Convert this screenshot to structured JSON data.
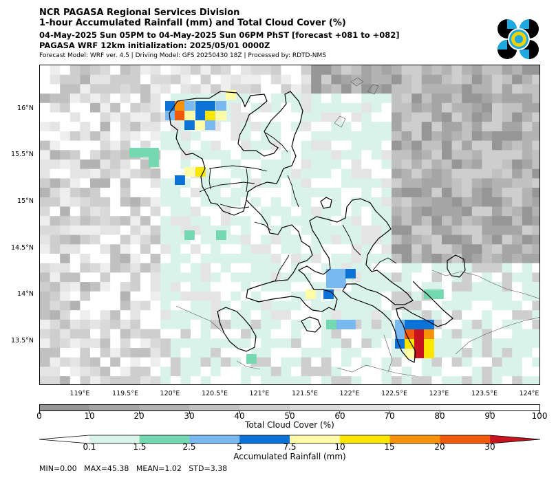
{
  "header": {
    "line1": "NCR PAGASA Regional Services Division",
    "line2": "1-hour Accumulated Rainfall (mm) and Total Cloud Cover (%)",
    "line3": "04-May-2025 Sun 05PM to 04-May-2025 Sun 06PM PhST [forecast +081 to +082]",
    "line4": "PAGASA WRF 12km initialization: 2025/05/01 0000Z",
    "line5": "Forecast Model: WRF ver. 4.5 | Driving Model: GFS 20250430 18Z | Processed by: RDTD-NMS"
  },
  "logo": {
    "name": "pagasa-seal",
    "colors": [
      "#000000",
      "#1ea8e0",
      "#f2d200"
    ]
  },
  "map": {
    "latitude_labels": [
      "16°N",
      "15.5°N",
      "15°N",
      "14.5°N",
      "14°N",
      "13.5°N"
    ],
    "longitude_labels": [
      "119°E",
      "119.5°E",
      "120°E",
      "120.5°E",
      "121°E",
      "121.5°E",
      "122°E",
      "122.5°E",
      "123°E",
      "123.5°E",
      "124°E"
    ]
  },
  "cloud_colorbar": {
    "label": "Total Cloud Cover (%)",
    "ticks": [
      "0",
      "10",
      "20",
      "30",
      "40",
      "50",
      "60",
      "70",
      "80",
      "90",
      "100"
    ],
    "colors": [
      "#969696",
      "#a5a5a5",
      "#b3b3b3",
      "#c1c1c1",
      "#cecece",
      "#dadada",
      "#e4e4e4",
      "#eeeeee",
      "#f7f7f7",
      "#ffffff"
    ]
  },
  "rain_colorbar": {
    "label": "Accumulated Rainfall (mm)",
    "ticks": [
      "0.1",
      "1.5",
      "2.5",
      "5",
      "7.5",
      "10",
      "15",
      "20",
      "30"
    ],
    "colors": [
      "#ffffff",
      "#daf3ea",
      "#74d9b0",
      "#7ab8f0",
      "#0b72d8",
      "#fffca8",
      "#fbe600",
      "#f7920a",
      "#f15a0a",
      "#c8141e"
    ]
  },
  "stats": {
    "text": "MIN=0.00   MAX=45.38   MEAN=1.02   STD=3.38"
  }
}
